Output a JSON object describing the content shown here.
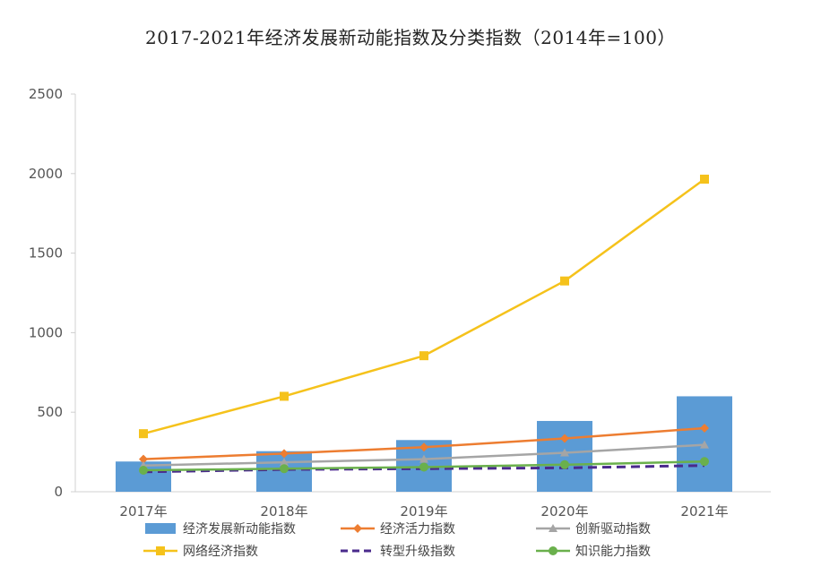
{
  "chart_data": {
    "type": "bar",
    "title": "2017-2021年经济发展新动能指数及分类指数（2014年=100）",
    "categories": [
      "2017年",
      "2018年",
      "2019年",
      "2020年",
      "2021年"
    ],
    "ylim": [
      0,
      2500
    ],
    "yticks": [
      0,
      500,
      1000,
      1500,
      2000,
      2500
    ],
    "grid": false,
    "legend_position": "bottom",
    "series": [
      {
        "name": "经济发展新动能指数",
        "kind": "bar",
        "color": "#5b9bd5",
        "marker": "rect",
        "values": [
          190,
          255,
          325,
          445,
          600
        ]
      },
      {
        "name": "经济活力指数",
        "kind": "line",
        "color": "#ed7d31",
        "marker": "diamond",
        "values": [
          205,
          240,
          280,
          335,
          400
        ]
      },
      {
        "name": "创新驱动指数",
        "kind": "line",
        "color": "#a5a5a5",
        "marker": "triangle",
        "values": [
          165,
          185,
          205,
          245,
          295
        ]
      },
      {
        "name": "网络经济指数",
        "kind": "line",
        "color": "#f5c21b",
        "marker": "square",
        "values": [
          365,
          600,
          855,
          1325,
          1965
        ]
      },
      {
        "name": "转型升级指数",
        "kind": "line",
        "color": "#4a2a8c",
        "marker": "none",
        "dashed": true,
        "values": [
          125,
          140,
          145,
          150,
          165
        ]
      },
      {
        "name": "知识能力指数",
        "kind": "line",
        "color": "#6ab04c",
        "marker": "circle",
        "values": [
          135,
          145,
          155,
          170,
          190
        ]
      }
    ]
  }
}
